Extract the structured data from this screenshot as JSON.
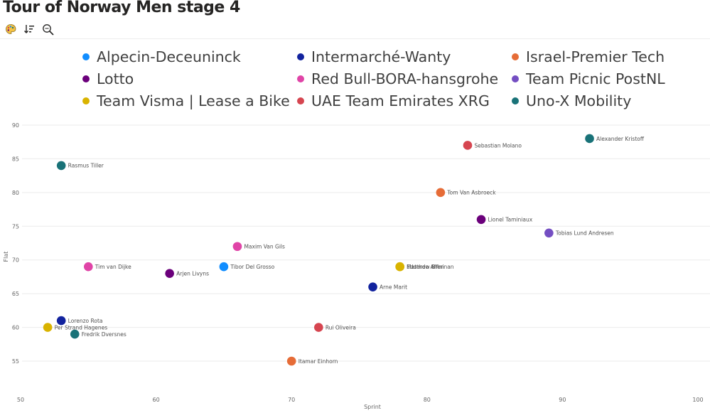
{
  "title": "Tour of Norway Men stage 4",
  "toolbar": [
    {
      "icon": "palette-icon"
    },
    {
      "icon": "sort-icon"
    },
    {
      "icon": "zoom-icon"
    }
  ],
  "legend": [
    {
      "label": "Alpecin-Deceuninck",
      "color": "#118DFF"
    },
    {
      "label": "Intermarché-Wanty",
      "color": "#12239E"
    },
    {
      "label": "Israel-Premier Tech",
      "color": "#E66C37"
    },
    {
      "label": "Lotto",
      "color": "#6B007B"
    },
    {
      "label": "Red Bull-BORA-hansgrohe",
      "color": "#E044A7"
    },
    {
      "label": "Team Picnic PostNL",
      "color": "#744EC2"
    },
    {
      "label": "Team Visma | Lease a Bike",
      "color": "#D9B300"
    },
    {
      "label": "UAE Team Emirates XRG",
      "color": "#D64550"
    },
    {
      "label": "Uno-X Mobility",
      "color": "#197278"
    }
  ],
  "chart_data": {
    "type": "scatter",
    "xlabel": "Sprint",
    "ylabel": "Flat",
    "xlim": [
      50,
      100
    ],
    "ylim": [
      50,
      91
    ],
    "xticks": [
      50,
      60,
      70,
      80,
      90,
      100
    ],
    "yticks": [
      55,
      60,
      65,
      70,
      75,
      80,
      85,
      90
    ],
    "grid": true,
    "legend_position": "top",
    "points": [
      {
        "name": "Alexander Kristoff",
        "team": "Uno-X Mobility",
        "x": 92,
        "y": 88
      },
      {
        "name": "Sebastian Molano",
        "team": "UAE Team Emirates XRG",
        "x": 83,
        "y": 87
      },
      {
        "name": "Rasmus Tiller",
        "team": "Uno-X Mobility",
        "x": 53,
        "y": 84
      },
      {
        "name": "Tom Van Asbroeck",
        "team": "Israel-Premier Tech",
        "x": 81,
        "y": 80
      },
      {
        "name": "Lionel Taminiaux",
        "team": "Lotto",
        "x": 84,
        "y": 76
      },
      {
        "name": "Tobias Lund Andresen",
        "team": "Team Picnic PostNL",
        "x": 89,
        "y": 74
      },
      {
        "name": "Maxim Van Gils",
        "team": "Red Bull-BORA-hansgrohe",
        "x": 66,
        "y": 72
      },
      {
        "name": "Tim van Dijke",
        "team": "Red Bull-BORA-hansgrohe",
        "x": 55,
        "y": 69
      },
      {
        "name": "Tibor Del Grosso",
        "team": "Alpecin-Deceuninck",
        "x": 65,
        "y": 69
      },
      {
        "name": "Matthew Brennan",
        "team": "Team Visma | Lease a Bike",
        "x": 78,
        "y": 69
      },
      {
        "name": "Edoardo Affini",
        "team": "Team Visma | Lease a Bike",
        "x": 78,
        "y": 69
      },
      {
        "name": "Arjen Livyns",
        "team": "Lotto",
        "x": 61,
        "y": 68
      },
      {
        "name": "Arne Marit",
        "team": "Intermarché-Wanty",
        "x": 76,
        "y": 66
      },
      {
        "name": "Lorenzo Rota",
        "team": "Intermarché-Wanty",
        "x": 53,
        "y": 61
      },
      {
        "name": "Per Strand Hagenes",
        "team": "Team Visma | Lease a Bike",
        "x": 52,
        "y": 60
      },
      {
        "name": "Rui Oliveira",
        "team": "UAE Team Emirates XRG",
        "x": 72,
        "y": 60
      },
      {
        "name": "Fredrik Dversnes",
        "team": "Uno-X Mobility",
        "x": 54,
        "y": 59
      },
      {
        "name": "Itamar Einhorn",
        "team": "Israel-Premier Tech",
        "x": 70,
        "y": 55
      }
    ]
  }
}
